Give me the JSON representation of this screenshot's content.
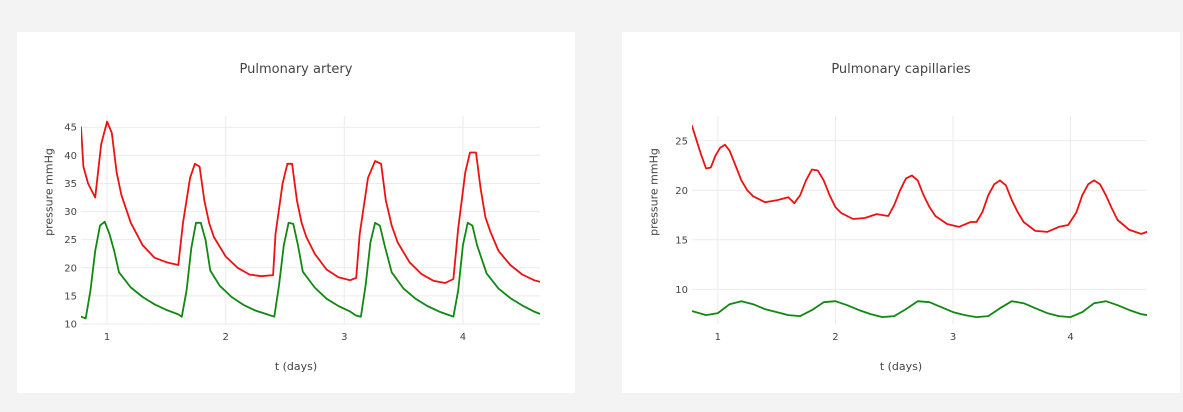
{
  "chart_data": [
    {
      "type": "line",
      "title": "Pulmonary artery",
      "xlabel": "t (days)",
      "ylabel": "pressure mmHg",
      "xlim": [
        0.78,
        4.65
      ],
      "ylim": [
        10,
        47
      ],
      "xticks": [
        1,
        2,
        3,
        4
      ],
      "yticks": [
        10,
        15,
        20,
        25,
        30,
        35,
        40,
        45
      ],
      "grid": true,
      "series": [
        {
          "color": "#ee1111",
          "x": [
            0.78,
            0.8,
            0.84,
            0.9,
            0.95,
            1.0,
            1.04,
            1.08,
            1.12,
            1.2,
            1.3,
            1.4,
            1.5,
            1.6,
            1.64,
            1.7,
            1.74,
            1.78,
            1.82,
            1.86,
            1.9,
            2.0,
            2.1,
            2.2,
            2.3,
            2.4,
            2.42,
            2.48,
            2.52,
            2.56,
            2.6,
            2.64,
            2.68,
            2.75,
            2.85,
            2.95,
            3.05,
            3.1,
            3.13,
            3.2,
            3.26,
            3.31,
            3.35,
            3.4,
            3.45,
            3.55,
            3.65,
            3.75,
            3.85,
            3.92,
            3.96,
            4.02,
            4.06,
            4.11,
            4.15,
            4.19,
            4.23,
            4.3,
            4.4,
            4.5,
            4.6,
            4.65
          ],
          "y": [
            45,
            38,
            35,
            32.5,
            42,
            46,
            44,
            37,
            33,
            28,
            24,
            21.8,
            21,
            20.5,
            28,
            36,
            38.5,
            38,
            32,
            28,
            25.5,
            22,
            20,
            18.8,
            18.5,
            18.7,
            26,
            35,
            38.5,
            38.5,
            32,
            28,
            25.5,
            22.5,
            19.7,
            18.3,
            17.8,
            18.2,
            26,
            36,
            39,
            38.5,
            32,
            27.5,
            24.5,
            21,
            18.9,
            17.7,
            17.3,
            18,
            27,
            37,
            40.5,
            40.5,
            34,
            29,
            26.5,
            23,
            20.5,
            18.8,
            17.8,
            17.5
          ]
        },
        {
          "color": "#118811",
          "x": [
            0.78,
            0.82,
            0.86,
            0.9,
            0.94,
            0.98,
            1.02,
            1.06,
            1.1,
            1.2,
            1.3,
            1.4,
            1.5,
            1.6,
            1.63,
            1.67,
            1.71,
            1.75,
            1.79,
            1.83,
            1.87,
            1.95,
            2.05,
            2.15,
            2.25,
            2.35,
            2.41,
            2.45,
            2.49,
            2.53,
            2.57,
            2.61,
            2.65,
            2.75,
            2.85,
            2.95,
            3.05,
            3.1,
            3.14,
            3.18,
            3.22,
            3.26,
            3.3,
            3.34,
            3.4,
            3.5,
            3.6,
            3.7,
            3.8,
            3.88,
            3.92,
            3.96,
            4.0,
            4.04,
            4.08,
            4.12,
            4.2,
            4.3,
            4.4,
            4.5,
            4.6,
            4.65
          ],
          "y": [
            11.3,
            11.0,
            16.0,
            23.0,
            27.5,
            28.2,
            26.0,
            23.0,
            19.2,
            16.5,
            14.8,
            13.5,
            12.5,
            11.7,
            11.3,
            16.0,
            23.5,
            28.0,
            28.0,
            25.0,
            19.5,
            16.8,
            14.8,
            13.4,
            12.4,
            11.7,
            11.3,
            17.0,
            24.0,
            28.0,
            27.8,
            24.0,
            19.3,
            16.5,
            14.5,
            13.2,
            12.2,
            11.5,
            11.3,
            17.0,
            24.5,
            28.0,
            27.5,
            24.0,
            19.2,
            16.3,
            14.5,
            13.2,
            12.2,
            11.6,
            11.3,
            16.0,
            24.0,
            28.0,
            27.5,
            24.0,
            19.0,
            16.3,
            14.6,
            13.3,
            12.2,
            11.8
          ]
        }
      ]
    },
    {
      "type": "line",
      "title": "Pulmonary capillaries",
      "xlabel": "t (days)",
      "ylabel": "pressure mmHg",
      "xlim": [
        0.78,
        4.65
      ],
      "ylim": [
        6.5,
        27.5
      ],
      "xticks": [
        1,
        2,
        3,
        4
      ],
      "yticks": [
        10,
        15,
        20,
        25
      ],
      "grid": true,
      "series": [
        {
          "color": "#ee1111",
          "x": [
            0.78,
            0.82,
            0.86,
            0.9,
            0.94,
            0.98,
            1.02,
            1.06,
            1.1,
            1.15,
            1.2,
            1.25,
            1.3,
            1.4,
            1.5,
            1.6,
            1.65,
            1.7,
            1.75,
            1.8,
            1.85,
            1.9,
            1.95,
            2.0,
            2.05,
            2.15,
            2.25,
            2.35,
            2.45,
            2.5,
            2.55,
            2.6,
            2.65,
            2.7,
            2.75,
            2.8,
            2.85,
            2.95,
            3.05,
            3.15,
            3.2,
            3.25,
            3.3,
            3.35,
            3.4,
            3.45,
            3.5,
            3.55,
            3.6,
            3.7,
            3.8,
            3.9,
            3.98,
            4.05,
            4.1,
            4.15,
            4.2,
            4.25,
            4.3,
            4.35,
            4.4,
            4.5,
            4.6,
            4.65
          ],
          "y": [
            26.5,
            25.0,
            23.5,
            22.2,
            22.3,
            23.5,
            24.3,
            24.6,
            24.0,
            22.5,
            21.0,
            20.0,
            19.4,
            18.8,
            19.0,
            19.3,
            18.7,
            19.5,
            21.0,
            22.1,
            22.0,
            21.0,
            19.5,
            18.3,
            17.7,
            17.1,
            17.2,
            17.6,
            17.4,
            18.5,
            20.0,
            21.2,
            21.5,
            21.0,
            19.5,
            18.3,
            17.4,
            16.6,
            16.3,
            16.8,
            16.8,
            17.8,
            19.5,
            20.6,
            21.0,
            20.5,
            19.0,
            17.8,
            16.8,
            15.9,
            15.8,
            16.3,
            16.5,
            17.8,
            19.5,
            20.6,
            21.0,
            20.6,
            19.5,
            18.2,
            17.0,
            16.0,
            15.6,
            15.8
          ]
        },
        {
          "color": "#118811",
          "x": [
            0.78,
            0.9,
            1.0,
            1.1,
            1.2,
            1.3,
            1.4,
            1.5,
            1.6,
            1.7,
            1.8,
            1.9,
            2.0,
            2.1,
            2.2,
            2.3,
            2.4,
            2.5,
            2.6,
            2.7,
            2.8,
            2.9,
            3.0,
            3.1,
            3.2,
            3.3,
            3.4,
            3.5,
            3.6,
            3.7,
            3.8,
            3.9,
            4.0,
            4.1,
            4.2,
            4.3,
            4.4,
            4.5,
            4.6,
            4.65
          ],
          "y": [
            7.8,
            7.4,
            7.6,
            8.5,
            8.8,
            8.5,
            8.0,
            7.7,
            7.4,
            7.3,
            7.9,
            8.7,
            8.8,
            8.4,
            7.9,
            7.5,
            7.2,
            7.3,
            8.0,
            8.8,
            8.7,
            8.2,
            7.7,
            7.4,
            7.2,
            7.3,
            8.1,
            8.8,
            8.6,
            8.1,
            7.6,
            7.3,
            7.2,
            7.7,
            8.6,
            8.8,
            8.4,
            7.9,
            7.5,
            7.4
          ]
        }
      ]
    }
  ]
}
